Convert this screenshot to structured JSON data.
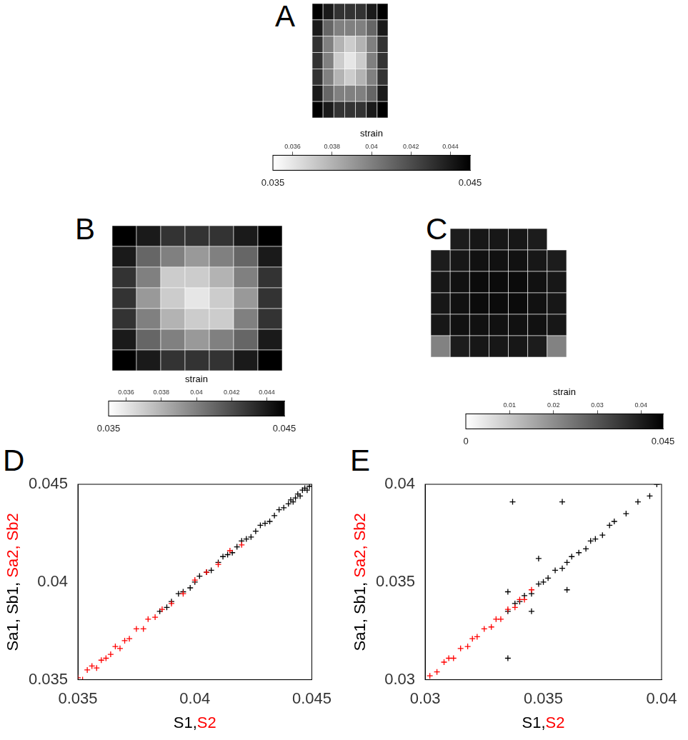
{
  "chart_data": [
    {
      "type": "heatmap",
      "panel": "A",
      "cells": [
        [
          0.045,
          0.044,
          0.043,
          0.043,
          0.043,
          0.044,
          0.045
        ],
        [
          0.044,
          0.041,
          0.04,
          0.04,
          0.04,
          0.041,
          0.044
        ],
        [
          0.043,
          0.04,
          0.038,
          0.037,
          0.038,
          0.04,
          0.043
        ],
        [
          0.043,
          0.04,
          0.037,
          0.036,
          0.037,
          0.04,
          0.043
        ],
        [
          0.043,
          0.04,
          0.038,
          0.037,
          0.038,
          0.04,
          0.043
        ],
        [
          0.044,
          0.041,
          0.04,
          0.04,
          0.04,
          0.041,
          0.044
        ],
        [
          0.045,
          0.044,
          0.043,
          0.043,
          0.043,
          0.044,
          0.045
        ]
      ],
      "colorbar": {
        "label": "strain",
        "range": [
          0.035,
          0.045
        ],
        "ticks": [
          0.035,
          0.036,
          0.038,
          0.04,
          0.042,
          0.044,
          0.045
        ]
      }
    },
    {
      "type": "heatmap",
      "panel": "B",
      "cells": [
        [
          0.045,
          0.044,
          0.043,
          0.043,
          0.043,
          0.044,
          0.045
        ],
        [
          0.044,
          0.041,
          0.04,
          0.039,
          0.04,
          0.041,
          0.044
        ],
        [
          0.043,
          0.04,
          0.037,
          0.037,
          0.038,
          0.04,
          0.043
        ],
        [
          0.043,
          0.039,
          0.037,
          0.036,
          0.037,
          0.039,
          0.043
        ],
        [
          0.043,
          0.04,
          0.038,
          0.037,
          0.037,
          0.04,
          0.043
        ],
        [
          0.044,
          0.041,
          0.04,
          0.039,
          0.04,
          0.041,
          0.044
        ],
        [
          0.045,
          0.044,
          0.043,
          0.043,
          0.043,
          0.044,
          0.045
        ]
      ],
      "colorbar": {
        "label": "strain",
        "range": [
          0.035,
          0.045
        ],
        "ticks": [
          0.035,
          0.036,
          0.038,
          0.04,
          0.042,
          0.044,
          0.045
        ]
      }
    },
    {
      "type": "heatmap",
      "panel": "C",
      "cells": [
        [
          null,
          0.04,
          0.041,
          0.041,
          0.041,
          0.04,
          null
        ],
        [
          0.04,
          0.041,
          0.042,
          0.042,
          0.042,
          0.041,
          0.04
        ],
        [
          0.041,
          0.042,
          0.043,
          0.043,
          0.043,
          0.042,
          0.041
        ],
        [
          0.041,
          0.042,
          0.043,
          0.043,
          0.043,
          0.042,
          0.041
        ],
        [
          0.041,
          0.042,
          0.042,
          0.042,
          0.042,
          0.042,
          0.041
        ],
        [
          0.022,
          0.04,
          0.041,
          0.041,
          0.041,
          0.04,
          0.022
        ]
      ],
      "colorbar": {
        "label": "strain",
        "range": [
          0,
          0.045
        ],
        "ticks": [
          0,
          0.01,
          0.02,
          0.03,
          0.04,
          0.045
        ]
      }
    },
    {
      "type": "scatter",
      "panel": "D",
      "x_label": [
        {
          "text": "S1,",
          "color": "#000000"
        },
        {
          "text": "S2",
          "color": "#ff0000"
        }
      ],
      "y_label": [
        {
          "text": "Sa1, Sb1, ",
          "color": "#000000"
        },
        {
          "text": "Sa2, Sb2",
          "color": "#ff0000"
        }
      ],
      "xlim": [
        0.035,
        0.045
      ],
      "xticks": [
        0.035,
        0.04,
        0.045
      ],
      "ylim": [
        0.035,
        0.045
      ],
      "yticks": [
        0.035,
        0.04,
        0.045
      ],
      "grid": false,
      "series": [
        {
          "color": "#ff0000",
          "marker": "plus",
          "x": [
            0.035,
            0.0352,
            0.0354,
            0.0356,
            0.0358,
            0.036,
            0.0362,
            0.0364,
            0.0366,
            0.0368,
            0.037,
            0.0372,
            0.0375,
            0.0378,
            0.038,
            0.0383,
            0.0386,
            0.039,
            0.0395,
            0.04,
            0.0405,
            0.041,
            0.0415,
            0.042
          ],
          "y": [
            0.0351,
            0.035,
            0.0355,
            0.0357,
            0.0356,
            0.036,
            0.0361,
            0.0363,
            0.0367,
            0.0366,
            0.037,
            0.0371,
            0.0376,
            0.0376,
            0.0381,
            0.0382,
            0.0386,
            0.0389,
            0.0394,
            0.0401,
            0.0405,
            0.0409,
            0.0416,
            0.0419
          ]
        },
        {
          "color": "#000000",
          "marker": "plus",
          "x": [
            0.0385,
            0.0388,
            0.039,
            0.0393,
            0.0395,
            0.0398,
            0.04,
            0.0402,
            0.0405,
            0.0407,
            0.041,
            0.0412,
            0.0414,
            0.0416,
            0.0418,
            0.042,
            0.0422,
            0.0424,
            0.0426,
            0.0428,
            0.043,
            0.0432,
            0.0434,
            0.0436,
            0.0438,
            0.044,
            0.0441,
            0.0442,
            0.0443,
            0.0444,
            0.0445,
            0.0446,
            0.0447,
            0.0448,
            0.0449
          ],
          "y": [
            0.0385,
            0.0387,
            0.039,
            0.0394,
            0.0395,
            0.0397,
            0.04,
            0.0403,
            0.0405,
            0.0406,
            0.041,
            0.0413,
            0.0414,
            0.0415,
            0.0418,
            0.0421,
            0.0422,
            0.0423,
            0.0426,
            0.0429,
            0.043,
            0.0431,
            0.0434,
            0.0437,
            0.0438,
            0.044,
            0.0442,
            0.0441,
            0.0443,
            0.0445,
            0.0444,
            0.0447,
            0.0448,
            0.0447,
            0.0449
          ]
        }
      ]
    },
    {
      "type": "scatter",
      "panel": "E",
      "x_label": [
        {
          "text": "S1,",
          "color": "#000000"
        },
        {
          "text": "S2",
          "color": "#ff0000"
        }
      ],
      "y_label": [
        {
          "text": "Sa1, Sb1, ",
          "color": "#000000"
        },
        {
          "text": "Sa2, Sb2",
          "color": "#ff0000"
        }
      ],
      "xlim": [
        0.03,
        0.04
      ],
      "xticks": [
        0.03,
        0.035,
        0.04
      ],
      "ylim": [
        0.03,
        0.04
      ],
      "yticks": [
        0.03,
        0.035,
        0.04
      ],
      "grid": false,
      "series": [
        {
          "color": "#ff0000",
          "marker": "plus",
          "x": [
            0.0302,
            0.0305,
            0.0308,
            0.031,
            0.0312,
            0.0315,
            0.0318,
            0.032,
            0.0322,
            0.0325,
            0.0328,
            0.033,
            0.0332,
            0.0335,
            0.0338,
            0.034,
            0.0342,
            0.0345
          ],
          "y": [
            0.0302,
            0.0304,
            0.0309,
            0.0311,
            0.0311,
            0.0316,
            0.0317,
            0.0321,
            0.0322,
            0.0326,
            0.0327,
            0.0331,
            0.0331,
            0.0336,
            0.0337,
            0.0341,
            0.0341,
            0.0346
          ]
        },
        {
          "color": "#000000",
          "marker": "plus",
          "x": [
            0.0335,
            0.0338,
            0.034,
            0.0342,
            0.0345,
            0.0348,
            0.035,
            0.0352,
            0.0355,
            0.0358,
            0.036,
            0.0362,
            0.0365,
            0.0368,
            0.037,
            0.0372,
            0.0375,
            0.0378,
            0.038,
            0.0385,
            0.039,
            0.0395,
            0.0398,
            0.0337,
            0.0358,
            0.0335,
            0.0345,
            0.0335,
            0.036,
            0.0348
          ],
          "y": [
            0.0335,
            0.0339,
            0.034,
            0.0343,
            0.0344,
            0.0349,
            0.035,
            0.0352,
            0.0356,
            0.0357,
            0.036,
            0.0363,
            0.0365,
            0.0367,
            0.0371,
            0.0372,
            0.0374,
            0.0379,
            0.0381,
            0.0385,
            0.0391,
            0.0394,
            0.04,
            0.0391,
            0.0391,
            0.0311,
            0.0335,
            0.0345,
            0.0346,
            0.0362
          ]
        }
      ]
    }
  ]
}
